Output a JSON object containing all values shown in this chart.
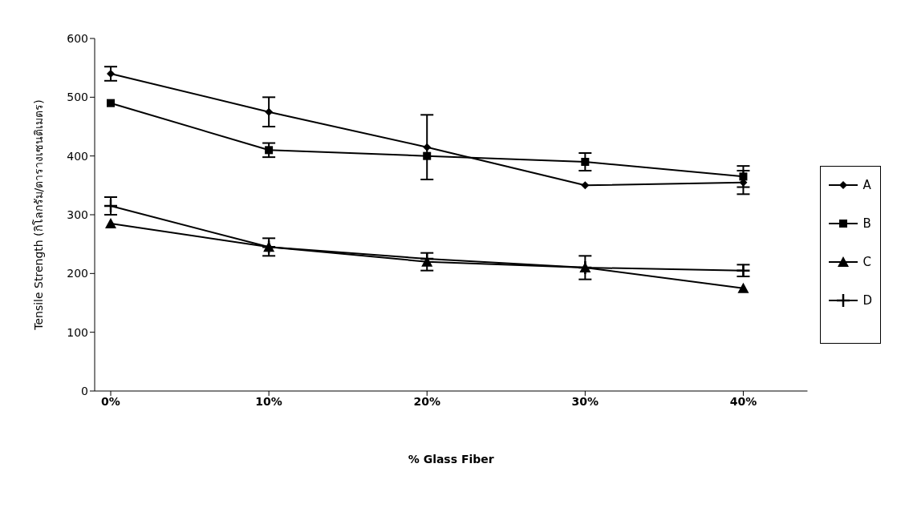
{
  "chart_data": {
    "type": "line",
    "xlabel": "%  Glass Fiber",
    "ylabel": "Tensile Strength (กิโลกรัม/ตารางเซนติเมตร)",
    "categories": [
      "0%",
      "10%",
      "20%",
      "30%",
      "40%"
    ],
    "ylim": [
      0,
      600
    ],
    "yticks": [
      0,
      100,
      200,
      300,
      400,
      500,
      600
    ],
    "grid": false,
    "legend": "right",
    "line_style": "solid",
    "series": [
      {
        "name": "A",
        "color": "#000000",
        "marker": "diamond",
        "values": [
          540,
          475,
          415,
          350,
          355
        ],
        "errors": [
          12,
          25,
          55,
          null,
          20
        ]
      },
      {
        "name": "B",
        "color": "#000000",
        "marker": "square",
        "values": [
          490,
          410,
          400,
          390,
          365
        ],
        "errors": [
          null,
          12,
          null,
          15,
          18
        ]
      },
      {
        "name": "C",
        "color": "#000000",
        "marker": "triangle",
        "values": [
          285,
          245,
          220,
          210,
          175
        ],
        "errors": [
          null,
          15,
          15,
          20,
          null
        ]
      },
      {
        "name": "D",
        "color": "#000000",
        "marker": "cross",
        "values": [
          315,
          245,
          225,
          210,
          205
        ],
        "errors": [
          15,
          null,
          null,
          null,
          10
        ]
      }
    ]
  }
}
